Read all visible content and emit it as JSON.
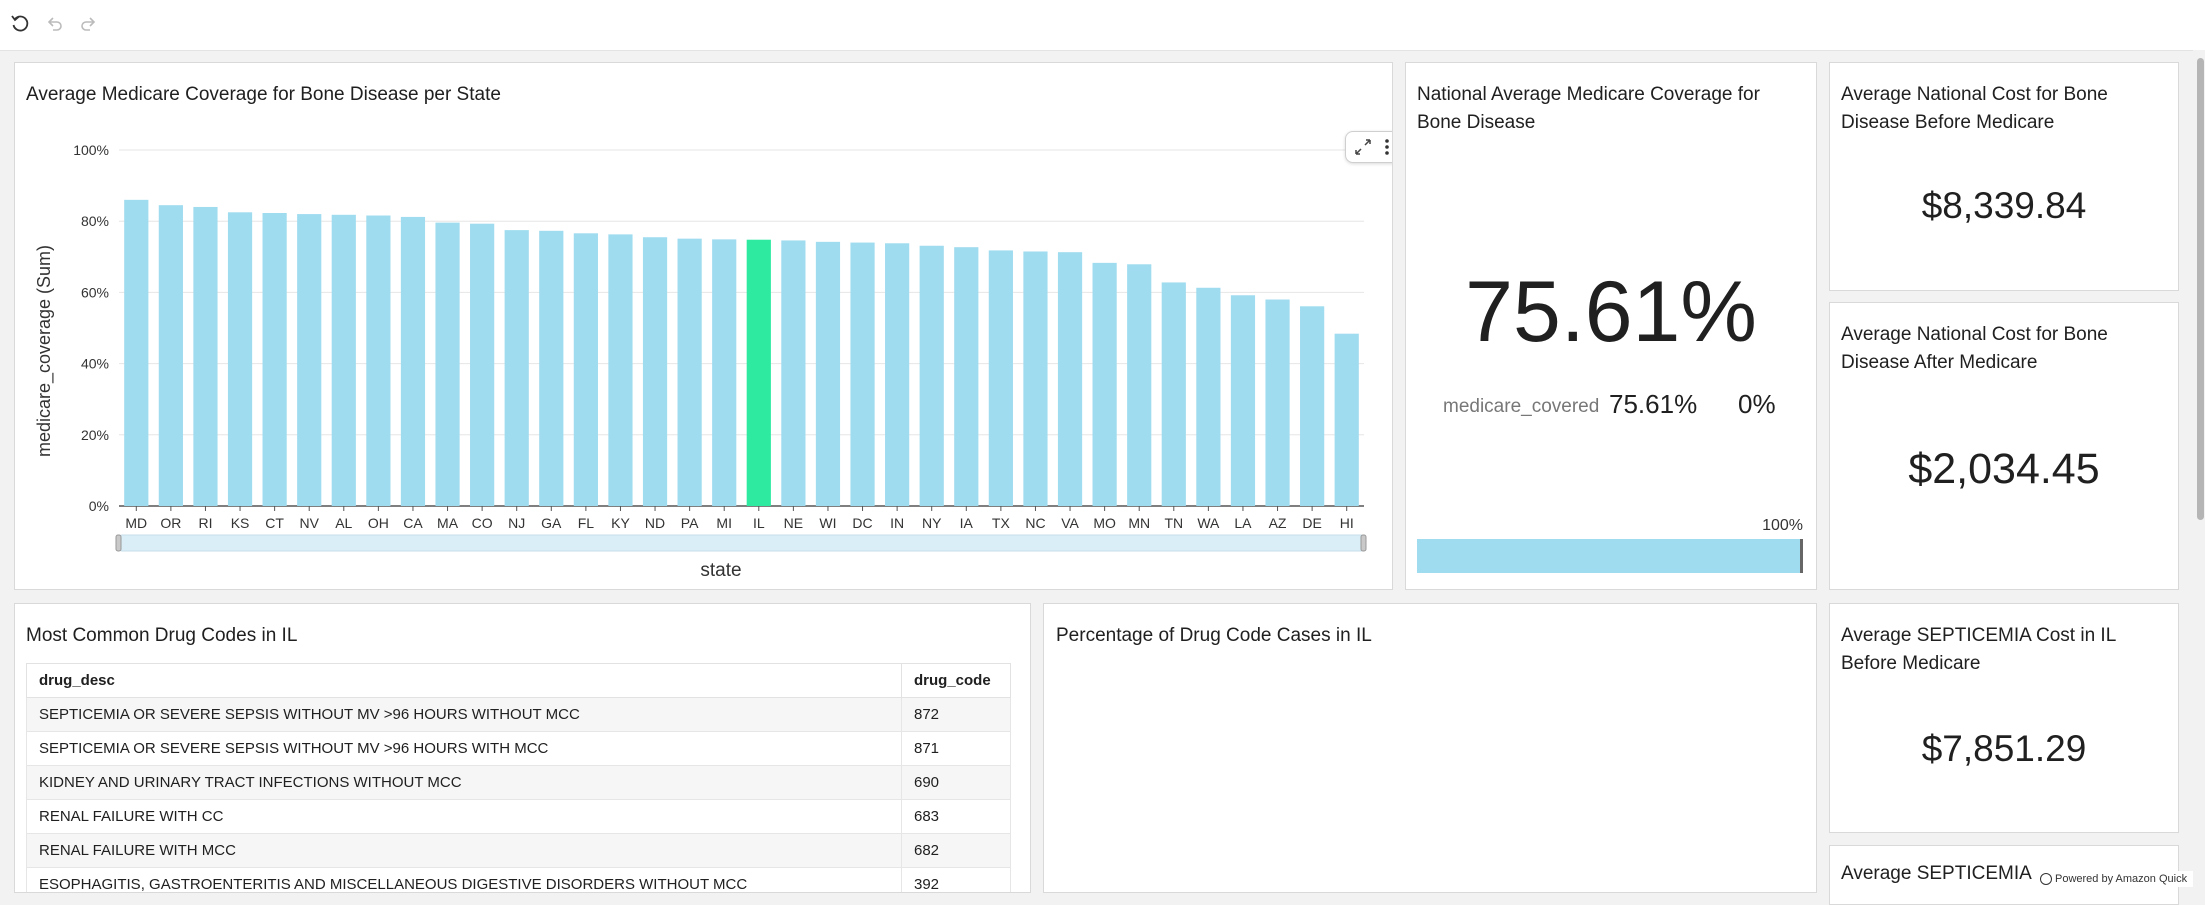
{
  "toolbar": {
    "icons": [
      "reset-icon",
      "undo-icon",
      "redo-icon"
    ]
  },
  "bar_panel": {
    "title": "Average Medicare Coverage for Bone Disease per State",
    "highlight_color": "#2eeaa0",
    "bar_color": "#a0dcf0"
  },
  "chart_data": {
    "type": "bar",
    "title": "Average Medicare Coverage for Bone Disease per State",
    "xlabel": "state",
    "ylabel": "medicare_coverage (Sum)",
    "ylim": [
      0,
      100
    ],
    "yticks": [
      "0%",
      "20%",
      "40%",
      "60%",
      "80%",
      "100%"
    ],
    "grid": true,
    "categories": [
      "MD",
      "OR",
      "RI",
      "KS",
      "CT",
      "NV",
      "AL",
      "OH",
      "CA",
      "MA",
      "CO",
      "NJ",
      "GA",
      "FL",
      "KY",
      "ND",
      "PA",
      "MI",
      "IL",
      "NE",
      "WI",
      "DC",
      "IN",
      "NY",
      "IA",
      "TX",
      "NC",
      "VA",
      "MO",
      "MN",
      "TN",
      "WA",
      "LA",
      "AZ",
      "DE",
      "HI"
    ],
    "values": [
      86,
      84.5,
      84,
      82.5,
      82.3,
      82,
      81.8,
      81.6,
      81.2,
      79.6,
      79.3,
      77.5,
      77.3,
      76.6,
      76.3,
      75.5,
      75.1,
      74.9,
      74.8,
      74.6,
      74.2,
      74,
      73.8,
      73.1,
      72.7,
      71.8,
      71.5,
      71.3,
      68.3,
      67.9,
      62.8,
      61.3,
      59.2,
      58,
      56.1,
      48.4
    ],
    "highlighted": "IL"
  },
  "national_panel": {
    "title": "National Average Medicare Coverage for Bone Disease",
    "big_value": "75.61%",
    "metric_label": "medicare_covered",
    "metric_value": "75.61%",
    "comparison_value": "0%",
    "progress_max_label": "100%",
    "progress_fraction": 0.9961
  },
  "kpi_before": {
    "title": "Average National Cost for Bone Disease Before Medicare",
    "value": "$8,339.84"
  },
  "kpi_after": {
    "title": "Average National Cost for Bone Disease After Medicare",
    "value": "$2,034.45"
  },
  "drug_table": {
    "title": "Most Common Drug Codes in IL",
    "columns": [
      "drug_desc",
      "drug_code"
    ],
    "rows": [
      {
        "desc": "SEPTICEMIA OR SEVERE SEPSIS WITHOUT MV >96 HOURS WITHOUT MCC",
        "code": "872"
      },
      {
        "desc": "SEPTICEMIA OR SEVERE SEPSIS WITHOUT MV >96 HOURS WITH MCC",
        "code": "871"
      },
      {
        "desc": "KIDNEY AND URINARY TRACT INFECTIONS WITHOUT MCC",
        "code": "690"
      },
      {
        "desc": "RENAL FAILURE WITH CC",
        "code": "683"
      },
      {
        "desc": "RENAL FAILURE WITH MCC",
        "code": "682"
      },
      {
        "desc": "ESOPHAGITIS, GASTROENTERITIS AND MISCELLANEOUS DIGESTIVE DISORDERS WITHOUT MCC",
        "code": "392"
      }
    ]
  },
  "pie_panel": {
    "title": "Percentage of Drug Code Cases in IL"
  },
  "kpi_septicemia": {
    "title": "Average SEPTICEMIA Cost in IL Before Medicare",
    "value": "$7,851.29"
  },
  "kpi_septicemia2": {
    "title": "Average SEPTICEMIA"
  },
  "footer": {
    "text": "Powered by Amazon Quick"
  }
}
